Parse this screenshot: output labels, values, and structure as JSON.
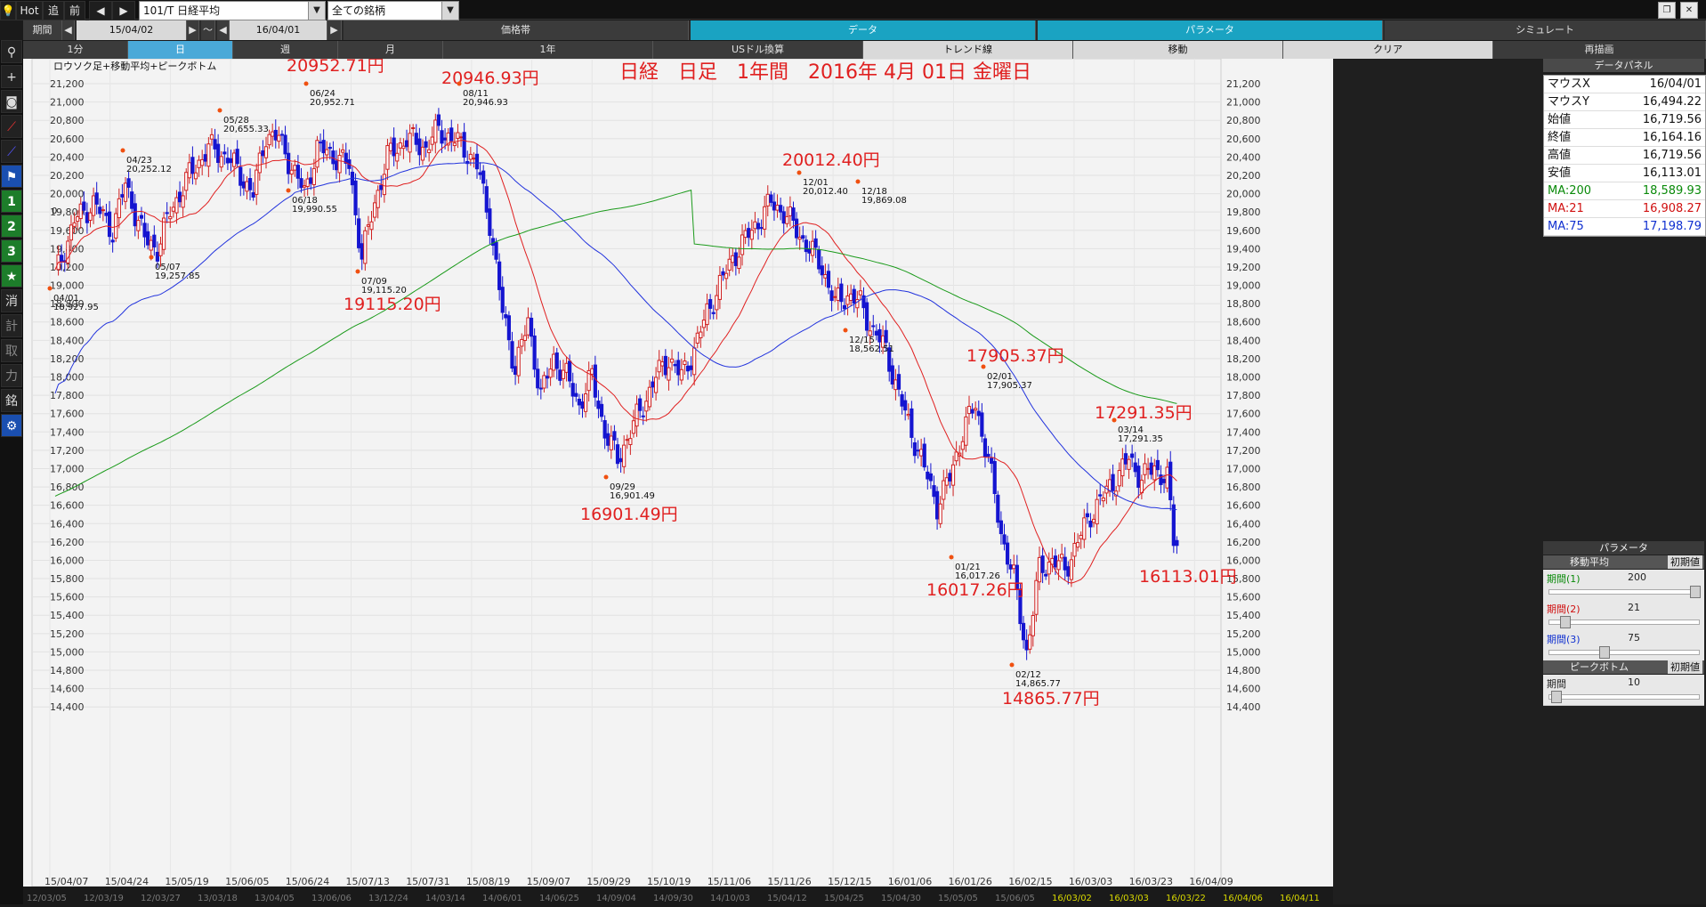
{
  "topbar": {
    "hot": "Hot",
    "tsui": "追",
    "saku": "前",
    "symbol": "101/T 日経平均",
    "universe": "全ての銘柄",
    "period_label": "期間",
    "date_from": "15/04/02",
    "tilde": "～",
    "date_to": "16/04/01"
  },
  "row2": {
    "price_band": "価格帯",
    "data": "データ",
    "parameter": "パラメータ",
    "simulate": "シミュレート"
  },
  "row3": {
    "m1": "1分",
    "day": "日",
    "week": "週",
    "month": "月",
    "year": "1年",
    "usd": "USドル換算",
    "trend": "トレンド線",
    "move": "移動",
    "clear": "クリア",
    "redraw": "再描画"
  },
  "leftbar": [
    "1",
    "2",
    "3",
    "★",
    "消",
    "計",
    "取",
    "力",
    "銘"
  ],
  "chart": {
    "legend": "ロウソク足+移動平均+ピークボトム",
    "title": "日経　日足　1年間　2016年 4月 01日 金曜日",
    "yticks": [
      "21,200",
      "21,000",
      "20,800",
      "20,600",
      "20,400",
      "20,200",
      "20,000",
      "19,800",
      "19,600",
      "19,400",
      "19,200",
      "19,000",
      "18,800",
      "18,600",
      "18,400",
      "18,200",
      "18,000",
      "17,800",
      "17,600",
      "17,400",
      "17,200",
      "17,000",
      "16,800",
      "16,600",
      "16,400",
      "16,200",
      "16,000",
      "15,800",
      "15,600",
      "15,400",
      "15,200",
      "15,000",
      "14,800",
      "14,600",
      "14,400"
    ],
    "xticks": [
      "15/04/07",
      "15/04/24",
      "15/05/19",
      "15/06/05",
      "15/06/24",
      "15/07/13",
      "15/07/31",
      "15/08/19",
      "15/09/07",
      "15/09/29",
      "15/10/19",
      "15/11/06",
      "15/11/26",
      "15/12/15",
      "16/01/06",
      "16/01/26",
      "16/02/15",
      "16/03/03",
      "16/03/23",
      "16/04/09"
    ],
    "big_labels": [
      "20952.71円",
      "20946.93円",
      "20012.40円",
      "19115.20円",
      "16901.49円",
      "17905.37円",
      "17291.35円",
      "16017.26円",
      "16113.01円",
      "14865.77円"
    ],
    "small_labels": [
      {
        "date": "04/01",
        "val": "18,927.95"
      },
      {
        "date": "04/23",
        "val": "20,252.12"
      },
      {
        "date": "05/07",
        "val": "19,257.85"
      },
      {
        "date": "05/28",
        "val": "20,655.33"
      },
      {
        "date": "06/18",
        "val": "19,990.55"
      },
      {
        "date": "06/24",
        "val": "20,952.71"
      },
      {
        "date": "07/09",
        "val": "19,115.20"
      },
      {
        "date": "08/11",
        "val": "20,946.93"
      },
      {
        "date": "09/29",
        "val": "16,901.49"
      },
      {
        "date": "12/01",
        "val": "20,012.40"
      },
      {
        "date": "12/18",
        "val": "19,869.08"
      },
      {
        "date": "12/15",
        "val": "18,562.51"
      },
      {
        "date": "01/21",
        "val": "16,017.26"
      },
      {
        "date": "02/01",
        "val": "17,905.37"
      },
      {
        "date": "02/12",
        "val": "14,865.77"
      },
      {
        "date": "03/14",
        "val": "17,291.35"
      }
    ],
    "left_edge_label": "0",
    "colors": {
      "ma200": "#1a9a1a",
      "ma21": "#e02020",
      "ma75": "#2233dd",
      "up": "#d02020",
      "down": "#1515d0",
      "label": "#e02020"
    }
  },
  "footer_dates": [
    "12/03/05",
    "12/03/19",
    "12/03/27",
    "13/03/18",
    "13/04/05",
    "13/06/06",
    "13/12/24",
    "14/03/14",
    "14/06/01",
    "14/06/25",
    "14/09/04",
    "14/09/30",
    "14/10/03",
    "15/04/12",
    "15/04/25",
    "15/04/30",
    "15/05/05",
    "15/06/05",
    "16/03/02",
    "16/03/03",
    "16/03/22",
    "16/04/06",
    "16/04/11"
  ],
  "data_panel": {
    "title": "データパネル",
    "rows": [
      {
        "k": "マウスX",
        "v": "16/04/01",
        "c": ""
      },
      {
        "k": "マウスY",
        "v": "16,494.22",
        "c": ""
      },
      {
        "k": "始値",
        "v": "16,719.56",
        "c": ""
      },
      {
        "k": "終値",
        "v": "16,164.16",
        "c": ""
      },
      {
        "k": "高値",
        "v": "16,719.56",
        "c": ""
      },
      {
        "k": "安値",
        "v": "16,113.01",
        "c": ""
      },
      {
        "k": "MA:200",
        "v": "18,589.93",
        "c": "g"
      },
      {
        "k": "MA:21",
        "v": "16,908.27",
        "c": "r"
      },
      {
        "k": "MA:75",
        "v": "17,198.79",
        "c": "b"
      }
    ]
  },
  "param_panel": {
    "title": "パラメータ",
    "ma_head": "移動平均",
    "init": "初期値",
    "p1_label": "期間(1)",
    "p1_val": "200",
    "p2_label": "期間(2)",
    "p2_val": "21",
    "p3_label": "期間(3)",
    "p3_val": "75",
    "pb_head": "ピークボトム",
    "pb_init": "初期値",
    "pb_label": "期間",
    "pb_val": "10"
  }
}
